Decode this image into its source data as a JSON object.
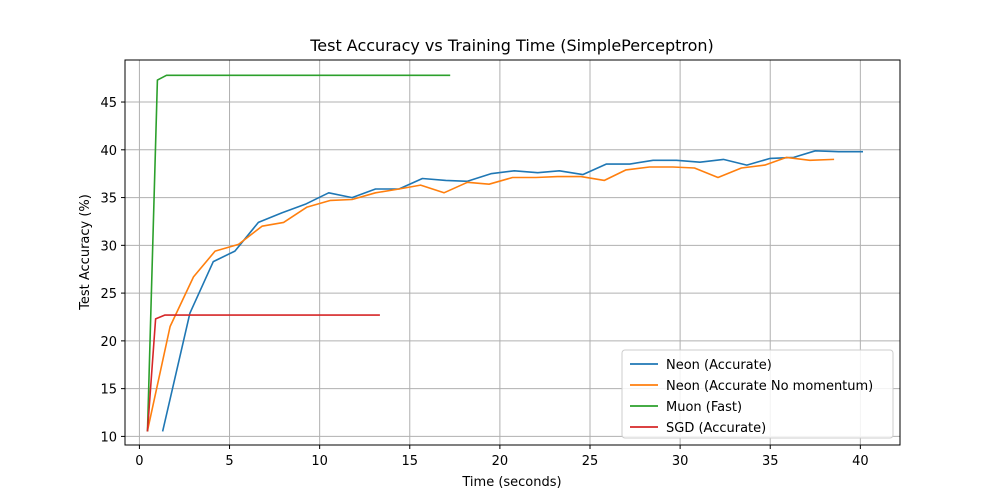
{
  "chart_data": {
    "type": "line",
    "title": "Test Accuracy vs Training Time (SimplePerceptron)",
    "xlabel": "Time (seconds)",
    "ylabel": "Test Accuracy (%)",
    "xlim": [
      -0.8,
      42.2
    ],
    "ylim": [
      9.1,
      49.4
    ],
    "xticks": [
      0,
      5,
      10,
      15,
      20,
      25,
      30,
      35,
      40
    ],
    "yticks": [
      10,
      15,
      20,
      25,
      30,
      35,
      40,
      45
    ],
    "grid": true,
    "legend_position": "lower right",
    "series": [
      {
        "name": "Neon (Accurate)",
        "color": "#1f77b4",
        "x": [
          1.3,
          2.8,
          4.1,
          5.3,
          6.6,
          7.9,
          9.2,
          10.5,
          11.8,
          13.1,
          14.4,
          15.7,
          17.0,
          18.2,
          19.5,
          20.8,
          22.1,
          23.3,
          24.6,
          25.9,
          27.2,
          28.5,
          29.8,
          31.1,
          32.4,
          33.7,
          35.0,
          36.3,
          37.5,
          38.8,
          40.1
        ],
        "y": [
          10.6,
          22.9,
          28.3,
          29.4,
          32.4,
          33.4,
          34.3,
          35.5,
          35.0,
          35.9,
          35.9,
          37.0,
          36.8,
          36.7,
          37.5,
          37.8,
          37.6,
          37.8,
          37.4,
          38.5,
          38.5,
          38.9,
          38.9,
          38.7,
          39.0,
          38.4,
          39.1,
          39.2,
          39.9,
          39.8,
          39.8
        ]
      },
      {
        "name": "Neon (Accurate No momentum)",
        "color": "#ff7f0e",
        "x": [
          0.45,
          1.7,
          3.0,
          4.2,
          5.5,
          6.8,
          8.0,
          9.3,
          10.6,
          11.8,
          13.1,
          14.4,
          15.6,
          16.9,
          18.2,
          19.4,
          20.7,
          22.0,
          23.2,
          24.5,
          25.8,
          27.0,
          28.3,
          29.6,
          30.8,
          32.1,
          33.4,
          34.7,
          35.9,
          37.2,
          38.5
        ],
        "y": [
          10.6,
          21.5,
          26.7,
          29.4,
          30.1,
          32.0,
          32.4,
          34.0,
          34.7,
          34.8,
          35.5,
          35.9,
          36.3,
          35.5,
          36.6,
          36.4,
          37.1,
          37.1,
          37.2,
          37.2,
          36.8,
          37.9,
          38.2,
          38.2,
          38.1,
          37.1,
          38.1,
          38.4,
          39.2,
          38.9,
          39.0
        ]
      },
      {
        "name": "Muon (Fast)",
        "color": "#2ca02c",
        "x": [
          0.45,
          1.0,
          1.5,
          2.0,
          3.0,
          5.0,
          8.0,
          11.0,
          14.0,
          17.2
        ],
        "y": [
          10.6,
          47.3,
          47.8,
          47.8,
          47.8,
          47.8,
          47.8,
          47.8,
          47.8,
          47.8
        ]
      },
      {
        "name": "SGD (Accurate)",
        "color": "#d62728",
        "x": [
          0.45,
          0.9,
          1.4,
          2.0,
          3.0,
          5.0,
          8.0,
          11.0,
          13.3
        ],
        "y": [
          10.6,
          22.3,
          22.7,
          22.7,
          22.7,
          22.7,
          22.7,
          22.7,
          22.7
        ]
      }
    ]
  }
}
